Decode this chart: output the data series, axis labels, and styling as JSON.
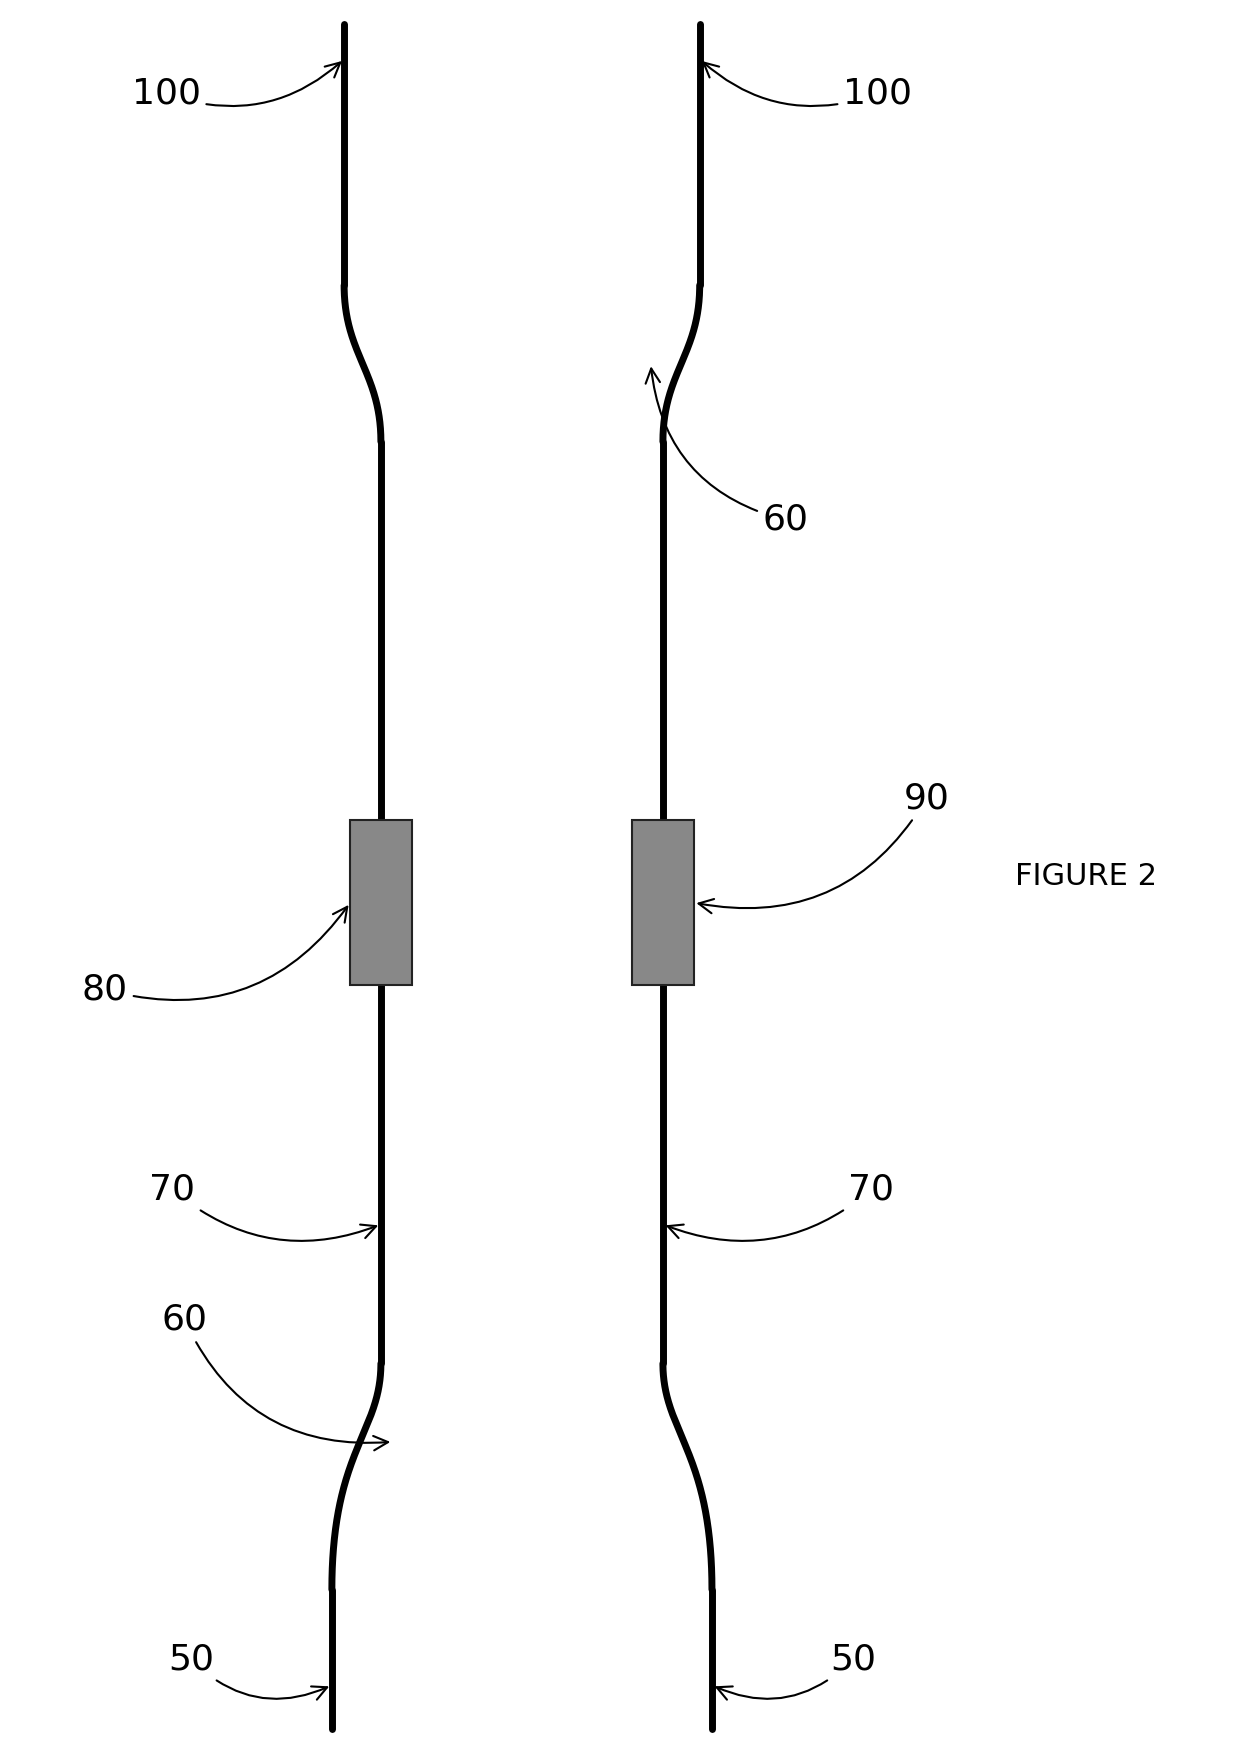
{
  "background_color": "#ffffff",
  "line_color": "#000000",
  "line_width": 5.0,
  "rect_color": "#888888",
  "rect_edge_color": "#222222",
  "figure_label": "FIGURE 2",
  "font_size_labels": 26,
  "font_size_figure": 22
}
